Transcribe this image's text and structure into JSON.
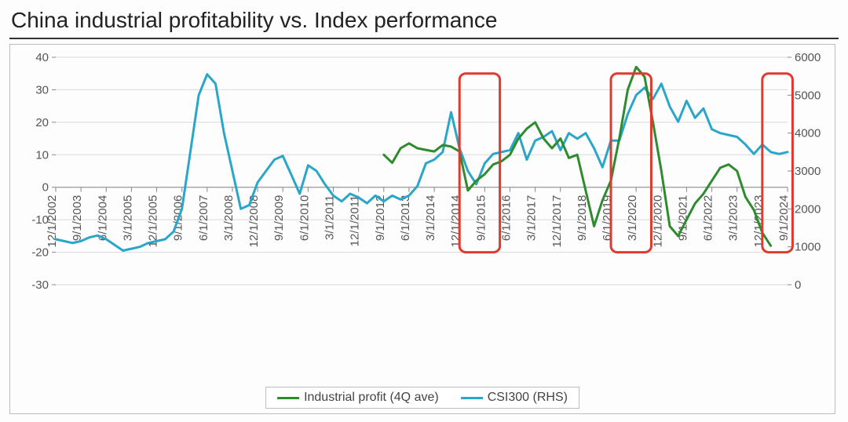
{
  "title": "China industrial profitability vs. Index performance",
  "chart": {
    "type": "line-dual-axis",
    "background_color": "#ffffff",
    "grid_color": "#d9d9d9",
    "axis_text_color": "#555555",
    "title_fontsize": 28,
    "axis_label_fontsize": 15,
    "line_width": 3,
    "left_axis": {
      "min": -30,
      "max": 40,
      "step": 10
    },
    "right_axis": {
      "min": 0,
      "max": 6000,
      "step": 1000
    },
    "x_labels": [
      "12/1/2002",
      "9/1/2003",
      "6/1/2004",
      "3/1/2005",
      "12/1/2005",
      "9/1/2006",
      "6/1/2007",
      "3/1/2008",
      "12/1/2008",
      "9/1/2009",
      "6/1/2010",
      "3/1/2011",
      "12/1/2011",
      "9/1/2012",
      "6/1/2013",
      "3/1/2014",
      "12/1/2014",
      "9/1/2015",
      "6/1/2016",
      "3/1/2017",
      "12/1/2017",
      "9/1/2018",
      "6/1/2019",
      "3/1/2020",
      "12/1/2020",
      "9/1/2021",
      "6/1/2022",
      "3/1/2023",
      "12/1/2023",
      "9/1/2024"
    ],
    "series": [
      {
        "name": "Industrial profit (4Q ave)",
        "axis": "left",
        "color": "#2e8b2e",
        "start_index": 13,
        "values": [
          10,
          7.5,
          12,
          13.5,
          12,
          11.5,
          11,
          13,
          12.5,
          11,
          -1,
          2,
          4,
          7,
          8,
          10,
          15,
          18,
          20,
          15,
          12,
          15,
          9,
          10,
          -1,
          -12,
          -4,
          2,
          15,
          30,
          37,
          34,
          20,
          5,
          -12,
          -15,
          -10,
          -5,
          -2,
          2,
          6,
          7,
          5,
          -3,
          -7,
          -14,
          -18
        ]
      },
      {
        "name": "CSI300 (RHS)",
        "axis": "right",
        "color": "#2aa6c9",
        "start_index": 0,
        "values": [
          1200,
          1150,
          1100,
          1150,
          1250,
          1300,
          1200,
          1050,
          900,
          950,
          1000,
          1100,
          1150,
          1200,
          1400,
          2000,
          3500,
          5000,
          5550,
          5300,
          4000,
          3000,
          2000,
          2100,
          2700,
          3000,
          3300,
          3400,
          2900,
          2400,
          3150,
          3000,
          2650,
          2350,
          2200,
          2400,
          2300,
          2150,
          2350,
          2200,
          2350,
          2250,
          2350,
          2600,
          3200,
          3300,
          3500,
          4550,
          3600,
          3000,
          2650,
          3200,
          3450,
          3500,
          3550,
          4000,
          3300,
          3800,
          3900,
          4050,
          3550,
          4000,
          3850,
          4000,
          3600,
          3100,
          3800,
          3800,
          4500,
          5000,
          5200,
          4900,
          5300,
          4700,
          4300,
          4850,
          4400,
          4650,
          4100,
          4000,
          3950,
          3900,
          3700,
          3450,
          3700,
          3500,
          3450,
          3500,
          4000
        ]
      }
    ],
    "highlight_boxes": [
      {
        "x_start_index": 16,
        "x_end_index": 17.6,
        "color": "#e03a2f",
        "stroke_width": 3
      },
      {
        "x_start_index": 22,
        "x_end_index": 23.6,
        "color": "#e03a2f",
        "stroke_width": 3
      },
      {
        "x_start_index": 28,
        "x_end_index": 29.2,
        "color": "#e03a2f",
        "stroke_width": 3
      }
    ],
    "legend": {
      "position": "bottom-center",
      "items": [
        {
          "label": "Industrial profit (4Q ave)",
          "color": "#2e8b2e"
        },
        {
          "label": "CSI300 (RHS)",
          "color": "#2aa6c9"
        }
      ]
    }
  }
}
